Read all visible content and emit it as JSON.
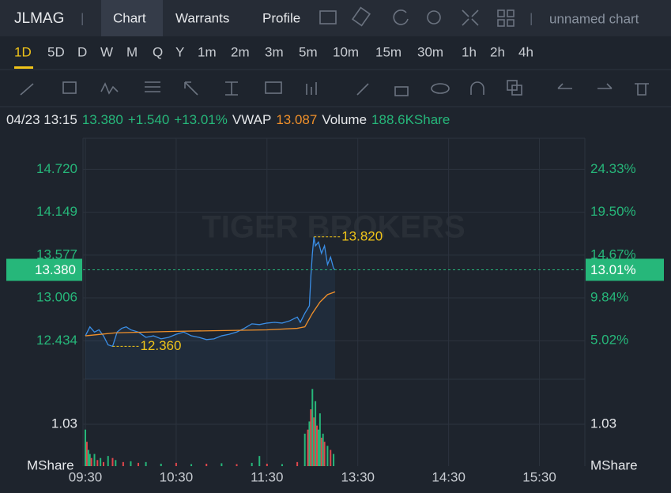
{
  "header": {
    "symbol": "JLMAG",
    "tabs": [
      "Chart",
      "Warrants",
      "Profile"
    ],
    "active_tab": 0,
    "chart_name": "unnamed chart"
  },
  "timeframes": [
    "1D",
    "5D",
    "D",
    "W",
    "M",
    "Q",
    "Y",
    "1m",
    "2m",
    "3m",
    "5m",
    "10m",
    "15m",
    "30m",
    "1h",
    "2h",
    "4h"
  ],
  "active_timeframe": 0,
  "info": {
    "datetime": "04/23 13:15",
    "price": "13.380",
    "change": "+1.540",
    "change_pct": "+13.01%",
    "vwap_label": "VWAP",
    "vwap": "13.087",
    "volume_label": "Volume",
    "volume": "188.6KShare"
  },
  "chart_data": {
    "type": "line",
    "watermark": "TIGER BROKERS",
    "x": [
      "09:30",
      "09:33",
      "09:36",
      "09:39",
      "09:42",
      "09:45",
      "09:48",
      "09:51",
      "09:54",
      "09:57",
      "10:00",
      "10:05",
      "10:10",
      "10:15",
      "10:20",
      "10:25",
      "10:30",
      "10:35",
      "10:40",
      "10:45",
      "10:50",
      "10:55",
      "11:00",
      "11:05",
      "11:10",
      "11:15",
      "11:20",
      "11:25",
      "11:30",
      "11:35",
      "11:40",
      "11:45",
      "11:50",
      "11:52",
      "11:55",
      "11:58",
      "11:59",
      "13:00",
      "13:01",
      "13:02",
      "13:04",
      "13:06",
      "13:08",
      "13:10",
      "13:12",
      "13:14",
      "13:15"
    ],
    "series": [
      {
        "name": "Price",
        "color": "#3a8ee6",
        "values": [
          12.5,
          12.62,
          12.55,
          12.58,
          12.5,
          12.38,
          12.36,
          12.55,
          12.6,
          12.62,
          12.58,
          12.55,
          12.48,
          12.5,
          12.46,
          12.48,
          12.52,
          12.55,
          12.5,
          12.48,
          12.45,
          12.46,
          12.5,
          12.52,
          12.55,
          12.6,
          12.66,
          12.65,
          12.67,
          12.68,
          12.67,
          12.7,
          12.75,
          12.68,
          12.8,
          12.9,
          13.3,
          13.6,
          13.82,
          13.7,
          13.75,
          13.6,
          13.7,
          13.45,
          13.55,
          13.4,
          13.38
        ]
      }
    ],
    "vwap": {
      "color": "#f0902a",
      "x": [
        "09:30",
        "09:50",
        "10:30",
        "11:30",
        "11:50",
        "11:55",
        "13:00",
        "13:05",
        "13:10",
        "13:15"
      ],
      "values": [
        12.5,
        12.54,
        12.56,
        12.58,
        12.6,
        12.62,
        12.8,
        12.95,
        13.05,
        13.087
      ]
    },
    "high": {
      "value": 13.82,
      "label": "13.820",
      "x": "13:01"
    },
    "low": {
      "value": 12.36,
      "label": "12.360",
      "x": "09:48"
    },
    "last_price": {
      "value": 13.38,
      "label": "13.380"
    },
    "last_pct": {
      "value": 13.01,
      "label": "13.01%"
    },
    "ylim": [
      11.921,
      15.135
    ],
    "yticks": [
      {
        "value": 14.72,
        "label": "14.720"
      },
      {
        "value": 14.149,
        "label": "14.149"
      },
      {
        "value": 13.577,
        "label": "13.577"
      },
      {
        "value": 13.006,
        "label": "13.006"
      },
      {
        "value": 12.434,
        "label": "12.434"
      }
    ],
    "y2lim": [
      0.68,
      27.83
    ],
    "y2ticks": [
      {
        "value": 24.33,
        "label": "24.33%"
      },
      {
        "value": 19.5,
        "label": "19.50%"
      },
      {
        "value": 14.67,
        "label": "14.67%"
      },
      {
        "value": 9.84,
        "label": "9.84%"
      },
      {
        "value": 5.02,
        "label": "5.02%"
      }
    ],
    "xlim": [
      "09:30",
      "16:00"
    ],
    "xticks": [
      "09:30",
      "10:30",
      "11:30",
      "13:30",
      "14:30",
      "15:30"
    ],
    "volume": {
      "unit": "MShare",
      "up_color": "#26b77a",
      "down_color": "#e0474c",
      "ylim": [
        0,
        2.14
      ],
      "yticks": [
        1.03
      ],
      "x": [
        "09:30",
        "09:31",
        "09:32",
        "09:33",
        "09:34",
        "09:36",
        "09:38",
        "09:40",
        "09:42",
        "09:45",
        "09:48",
        "09:50",
        "09:55",
        "10:00",
        "10:05",
        "10:10",
        "10:20",
        "10:30",
        "10:40",
        "10:50",
        "11:00",
        "11:10",
        "11:20",
        "11:25",
        "11:30",
        "11:40",
        "11:50",
        "11:55",
        "11:57",
        "11:58",
        "11:59",
        "13:00",
        "13:01",
        "13:02",
        "13:03",
        "13:04",
        "13:05",
        "13:06",
        "13:07",
        "13:08",
        "13:10",
        "13:12",
        "13:14"
      ],
      "values": [
        0.9,
        0.6,
        0.4,
        0.3,
        0.2,
        0.3,
        0.15,
        0.2,
        0.1,
        0.25,
        0.2,
        0.15,
        0.1,
        0.12,
        0.08,
        0.1,
        0.06,
        0.08,
        0.05,
        0.06,
        0.07,
        0.05,
        0.08,
        0.25,
        0.06,
        0.05,
        0.1,
        0.8,
        0.9,
        1.1,
        1.4,
        1.9,
        1.2,
        1.6,
        1.0,
        0.9,
        1.3,
        0.7,
        0.8,
        0.6,
        0.5,
        0.4,
        0.3
      ],
      "up": [
        true,
        false,
        true,
        true,
        false,
        true,
        false,
        true,
        false,
        true,
        false,
        true,
        false,
        true,
        false,
        true,
        true,
        false,
        true,
        false,
        true,
        false,
        true,
        true,
        false,
        true,
        false,
        true,
        false,
        true,
        false,
        true,
        false,
        true,
        false,
        true,
        true,
        false,
        true,
        false,
        true,
        false,
        true
      ]
    },
    "grid": true
  }
}
